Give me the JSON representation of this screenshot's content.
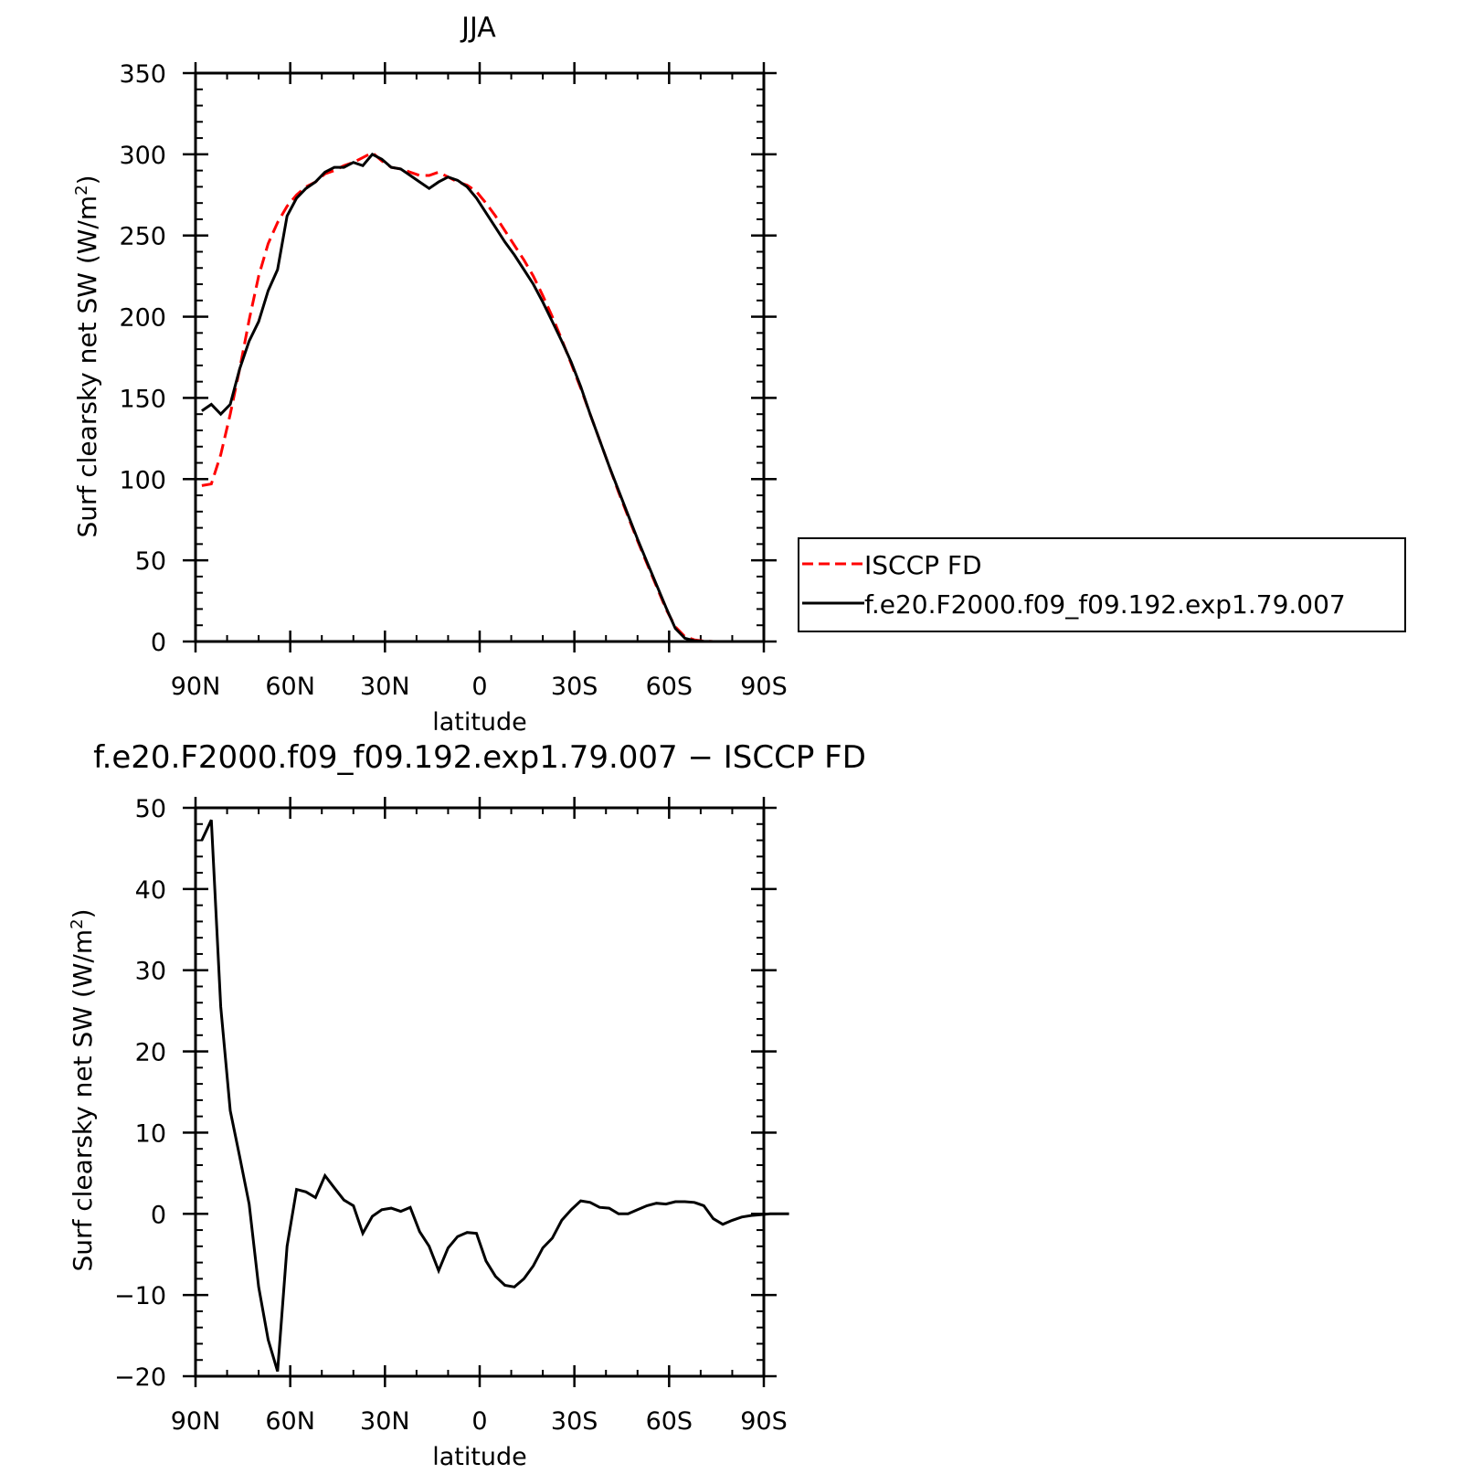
{
  "chart_data": [
    {
      "type": "line",
      "title": "JJA",
      "xlabel": "latitude",
      "ylabel_main": "Surf clearsky net SW (W/m",
      "ylabel_sup": "2",
      "ylabel_tail": ")",
      "xlim": [
        90,
        -90
      ],
      "ylim": [
        0,
        350
      ],
      "x_ticks": [
        {
          "value": 90,
          "label": "90N"
        },
        {
          "value": 60,
          "label": "60N"
        },
        {
          "value": 30,
          "label": "30N"
        },
        {
          "value": 0,
          "label": "0"
        },
        {
          "value": -30,
          "label": "30S"
        },
        {
          "value": -60,
          "label": "60S"
        },
        {
          "value": -90,
          "label": "90S"
        }
      ],
      "y_ticks": [
        {
          "value": 0,
          "label": "0"
        },
        {
          "value": 50,
          "label": "50"
        },
        {
          "value": 100,
          "label": "100"
        },
        {
          "value": 150,
          "label": "150"
        },
        {
          "value": 200,
          "label": "200"
        },
        {
          "value": 250,
          "label": "250"
        },
        {
          "value": 300,
          "label": "300"
        },
        {
          "value": 350,
          "label": "350"
        }
      ],
      "legend_position": "right",
      "series": [
        {
          "name": "ISCCP FD",
          "color": "#ff0000",
          "style": "dashed",
          "points": [
            [
              88,
              96
            ],
            [
              85,
              97
            ],
            [
              82,
              115
            ],
            [
              79,
              140
            ],
            [
              76,
              168
            ],
            [
              73,
              198
            ],
            [
              70,
              225
            ],
            [
              67,
              245
            ],
            [
              64,
              258
            ],
            [
              61,
              268
            ],
            [
              58,
              275
            ],
            [
              55,
              280
            ],
            [
              52,
              283
            ],
            [
              49,
              288
            ],
            [
              46,
              290
            ],
            [
              43,
              293
            ],
            [
              40,
              295
            ],
            [
              37,
              298
            ],
            [
              34,
              301
            ],
            [
              31,
              296
            ],
            [
              28,
              292
            ],
            [
              25,
              291
            ],
            [
              22,
              289
            ],
            [
              19,
              287
            ],
            [
              16,
              287
            ],
            [
              13,
              289
            ],
            [
              10,
              286
            ],
            [
              7,
              283
            ],
            [
              4,
              281
            ],
            [
              1,
              277
            ],
            [
              -2,
              270
            ],
            [
              -5,
              262
            ],
            [
              -8,
              253
            ],
            [
              -11,
              244
            ],
            [
              -14,
              235
            ],
            [
              -17,
              225
            ],
            [
              -20,
              213
            ],
            [
              -23,
              200
            ],
            [
              -26,
              186
            ],
            [
              -29,
              171
            ],
            [
              -32,
              156
            ],
            [
              -35,
              140
            ],
            [
              -38,
              124
            ],
            [
              -41,
              108
            ],
            [
              -44,
              92
            ],
            [
              -47,
              77
            ],
            [
              -50,
              62
            ],
            [
              -53,
              48
            ],
            [
              -56,
              34
            ],
            [
              -59,
              20
            ],
            [
              -62,
              9
            ],
            [
              -65,
              3
            ],
            [
              -68,
              1
            ],
            [
              -71,
              0.3
            ],
            [
              -74,
              0
            ],
            [
              -77,
              0
            ],
            [
              -80,
              0
            ],
            [
              -83,
              0
            ],
            [
              -86,
              0
            ],
            [
              -88,
              0
            ]
          ]
        },
        {
          "name": "f.e20.F2000.f09_f09.192.exp1.79.007",
          "color": "#000000",
          "style": "solid",
          "points": [
            [
              88,
              142
            ],
            [
              85,
              146
            ],
            [
              82,
              140
            ],
            [
              79,
              146
            ],
            [
              76,
              168
            ],
            [
              73,
              185
            ],
            [
              70,
              197
            ],
            [
              67,
              216
            ],
            [
              64,
              229
            ],
            [
              61,
              262
            ],
            [
              58,
              273
            ],
            [
              55,
              279
            ],
            [
              52,
              283
            ],
            [
              49,
              289
            ],
            [
              46,
              292
            ],
            [
              43,
              292
            ],
            [
              40,
              295
            ],
            [
              37,
              293
            ],
            [
              34,
              300
            ],
            [
              31,
              297
            ],
            [
              28,
              292
            ],
            [
              25,
              291
            ],
            [
              22,
              287
            ],
            [
              19,
              283
            ],
            [
              16,
              279
            ],
            [
              13,
              283
            ],
            [
              10,
              286
            ],
            [
              7,
              284
            ],
            [
              4,
              280
            ],
            [
              1,
              273
            ],
            [
              -2,
              264
            ],
            [
              -5,
              255
            ],
            [
              -8,
              246
            ],
            [
              -11,
              238
            ],
            [
              -14,
              229
            ],
            [
              -17,
              220
            ],
            [
              -20,
              209
            ],
            [
              -23,
              197
            ],
            [
              -26,
              185
            ],
            [
              -29,
              172
            ],
            [
              -32,
              157
            ],
            [
              -35,
              140
            ],
            [
              -38,
              124
            ],
            [
              -41,
              108
            ],
            [
              -44,
              93
            ],
            [
              -47,
              78
            ],
            [
              -50,
              63
            ],
            [
              -53,
              49
            ],
            [
              -56,
              35
            ],
            [
              -59,
              21
            ],
            [
              -62,
              8
            ],
            [
              -65,
              2
            ],
            [
              -68,
              0.5
            ],
            [
              -71,
              0.1
            ],
            [
              -74,
              0
            ],
            [
              -77,
              0
            ],
            [
              -80,
              0
            ],
            [
              -83,
              0
            ],
            [
              -86,
              0
            ],
            [
              -88,
              0
            ]
          ]
        }
      ]
    },
    {
      "type": "line",
      "title": "f.e20.F2000.f09_f09.192.exp1.79.007 − ISCCP FD",
      "xlabel": "latitude",
      "ylabel_main": "Surf clearsky net SW (W/m",
      "ylabel_sup": "2",
      "ylabel_tail": ")",
      "xlim": [
        90,
        -90
      ],
      "ylim": [
        -20,
        50
      ],
      "x_ticks": [
        {
          "value": 90,
          "label": "90N"
        },
        {
          "value": 60,
          "label": "60N"
        },
        {
          "value": 30,
          "label": "30N"
        },
        {
          "value": 0,
          "label": "0"
        },
        {
          "value": -30,
          "label": "30S"
        },
        {
          "value": -60,
          "label": "60S"
        },
        {
          "value": -90,
          "label": "90S"
        }
      ],
      "y_ticks": [
        {
          "value": -20,
          "label": "−20"
        },
        {
          "value": -10,
          "label": "−10"
        },
        {
          "value": 0,
          "label": "0"
        },
        {
          "value": 10,
          "label": "10"
        },
        {
          "value": 20,
          "label": "20"
        },
        {
          "value": 30,
          "label": "30"
        },
        {
          "value": 40,
          "label": "40"
        },
        {
          "value": 50,
          "label": "50"
        }
      ],
      "series": [
        {
          "color": "#000000",
          "style": "solid",
          "points": [
            [
              88,
              46
            ],
            [
              85,
              48.5
            ],
            [
              82,
              25.5
            ],
            [
              79,
              12.7
            ],
            [
              76,
              7
            ],
            [
              73,
              1.2
            ],
            [
              70,
              -9
            ],
            [
              67,
              -15.5
            ],
            [
              64,
              -19.4
            ],
            [
              61,
              -4
            ],
            [
              58,
              3
            ],
            [
              55,
              2.7
            ],
            [
              52,
              2
            ],
            [
              49,
              4.7
            ],
            [
              46,
              3.2
            ],
            [
              43,
              1.7
            ],
            [
              40,
              1
            ],
            [
              37,
              -2.4
            ],
            [
              34,
              -0.3
            ],
            [
              31,
              0.5
            ],
            [
              28,
              0.7
            ],
            [
              25,
              0.3
            ],
            [
              22,
              0.8
            ],
            [
              19,
              -2.2
            ],
            [
              16,
              -4
            ],
            [
              13,
              -7
            ],
            [
              10,
              -4.2
            ],
            [
              7,
              -2.8
            ],
            [
              4,
              -2.3
            ],
            [
              1,
              -2.4
            ],
            [
              -2,
              -5.8
            ],
            [
              -5,
              -7.7
            ],
            [
              -8,
              -8.8
            ],
            [
              -11,
              -9
            ],
            [
              -14,
              -8
            ],
            [
              -17,
              -6.4
            ],
            [
              -20,
              -4.2
            ],
            [
              -23,
              -3
            ],
            [
              -26,
              -0.8
            ],
            [
              -29,
              0.5
            ],
            [
              -32,
              1.6
            ],
            [
              -35,
              1.4
            ],
            [
              -38,
              0.8
            ],
            [
              -41,
              0.7
            ],
            [
              -44,
              0
            ],
            [
              -47,
              0
            ],
            [
              -50,
              0.5
            ],
            [
              -53,
              1
            ],
            [
              -56,
              1.3
            ],
            [
              -59,
              1.2
            ],
            [
              -62,
              1.5
            ],
            [
              -65,
              1.5
            ],
            [
              -68,
              1.4
            ],
            [
              -71,
              1
            ],
            [
              -74,
              -0.6
            ],
            [
              -77,
              -1.3
            ],
            [
              -80,
              -0.8
            ],
            [
              -83,
              -0.4
            ],
            [
              -86,
              -0.2
            ],
            [
              -89,
              -0.1
            ],
            [
              -92,
              0
            ],
            [
              -95,
              0
            ],
            [
              -98,
              0
            ]
          ]
        }
      ]
    }
  ]
}
